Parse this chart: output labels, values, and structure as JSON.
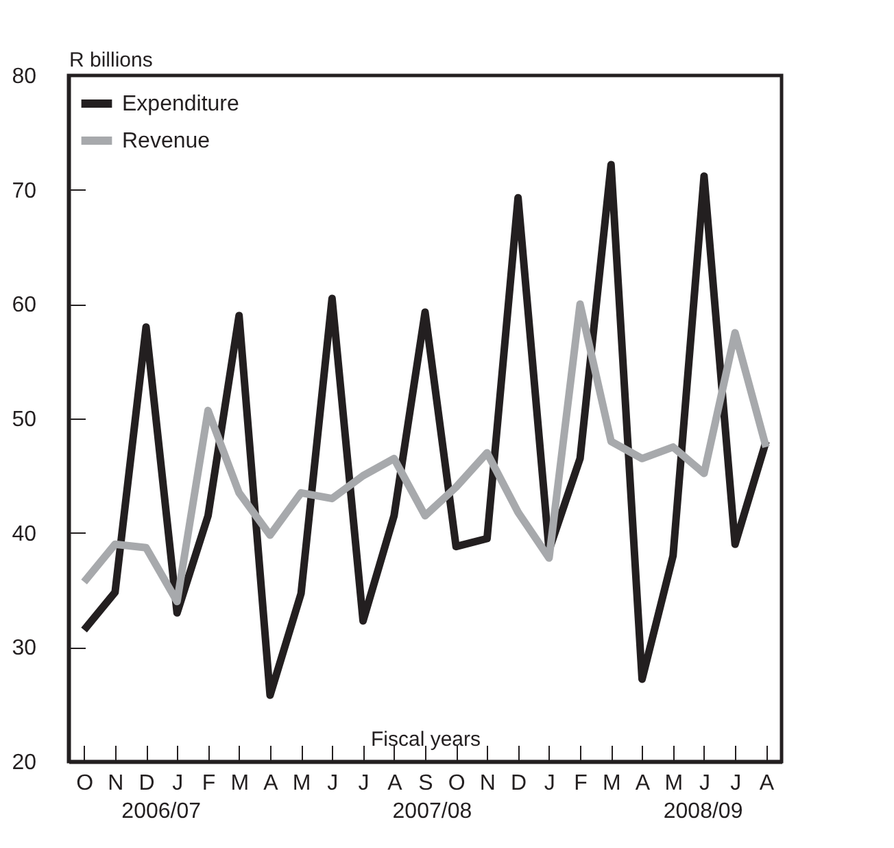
{
  "chart_data": {
    "type": "line",
    "ylabel": "R billions",
    "xlabel": "Fiscal years",
    "categories": [
      "O",
      "N",
      "D",
      "J",
      "F",
      "M",
      "A",
      "M",
      "J",
      "J",
      "A",
      "S",
      "O",
      "N",
      "D",
      "J",
      "F",
      "M",
      "A",
      "M",
      "J",
      "J",
      "A"
    ],
    "series": [
      {
        "name": "Expenditure",
        "color": "#231f20",
        "values": [
          31.5,
          34.8,
          58,
          33,
          41.5,
          59,
          25.8,
          34.7,
          60.5,
          32.3,
          41.5,
          59.3,
          38.8,
          39.5,
          69.3,
          38.5,
          46.5,
          72.2,
          27.2,
          38,
          71.2,
          39,
          48
        ]
      },
      {
        "name": "Revenue",
        "color": "#a7a9ac",
        "values": [
          35.7,
          39,
          38.7,
          34,
          50.7,
          43.5,
          39.8,
          43.5,
          43,
          45,
          46.5,
          41.5,
          44,
          47,
          41.8,
          37.8,
          60,
          48,
          46.5,
          47.5,
          45.2,
          57.5,
          47.5
        ]
      }
    ],
    "ylim": [
      20,
      80
    ],
    "yticks": [
      20,
      30,
      40,
      50,
      60,
      70,
      80
    ],
    "grid": false,
    "legend": "top left",
    "marker": "none",
    "line_style": "solid",
    "annotations": [
      "2006/07",
      "2007/08",
      "2008/09"
    ]
  }
}
